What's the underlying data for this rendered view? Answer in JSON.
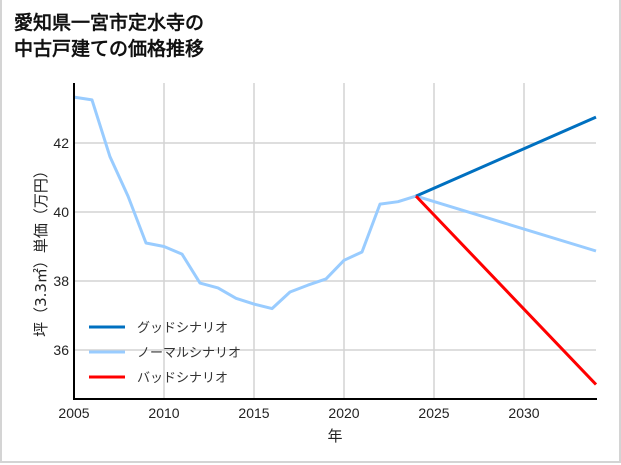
{
  "title": {
    "line1": "愛知県一宮市定水寺の",
    "line2": "中古戸建ての価格推移"
  },
  "chart_data": {
    "type": "line",
    "title": "愛知県一宮市定水寺の中古戸建ての価格推移",
    "xlabel": "年",
    "ylabel": "坪（3.3㎡）単価（万円）",
    "xlim": [
      2005,
      2034
    ],
    "ylim": [
      34.9,
      43.7
    ],
    "xticks": [
      2005,
      2010,
      2015,
      2020,
      2025,
      2030
    ],
    "yticks": [
      36,
      38,
      40,
      42
    ],
    "grid": true,
    "legend_position": "lower left",
    "series": [
      {
        "name": "グッドシナリオ",
        "color": "#0070c0",
        "x": [
          2024,
          2034
        ],
        "values": [
          40.46,
          42.75
        ]
      },
      {
        "name": "ノーマルシナリオ",
        "color": "#99ccff",
        "x": [
          2005,
          2006,
          2007,
          2008,
          2009,
          2010,
          2011,
          2012,
          2013,
          2014,
          2015,
          2016,
          2017,
          2018,
          2019,
          2020,
          2021,
          2022,
          2023,
          2024,
          2034
        ],
        "values": [
          43.33,
          43.25,
          41.6,
          40.46,
          39.1,
          39.0,
          38.78,
          37.94,
          37.8,
          37.5,
          37.33,
          37.2,
          37.68,
          37.88,
          38.06,
          38.6,
          38.84,
          40.23,
          40.3,
          40.46,
          38.87
        ]
      },
      {
        "name": "バッドシナリオ",
        "color": "#ff0000",
        "x": [
          2024,
          2034
        ],
        "values": [
          40.46,
          35.0
        ]
      }
    ]
  },
  "axes": {
    "x_label": "年",
    "y_label": "坪（3.3㎡）単価（万円）",
    "x_ticks": [
      "2005",
      "2010",
      "2015",
      "2020",
      "2025",
      "2030"
    ],
    "y_ticks": [
      "36",
      "38",
      "40",
      "42"
    ]
  },
  "legend": {
    "items": [
      {
        "label": "グッドシナリオ",
        "color": "#0070c0"
      },
      {
        "label": "ノーマルシナリオ",
        "color": "#99ccff"
      },
      {
        "label": "バッドシナリオ",
        "color": "#ff0000"
      }
    ]
  }
}
